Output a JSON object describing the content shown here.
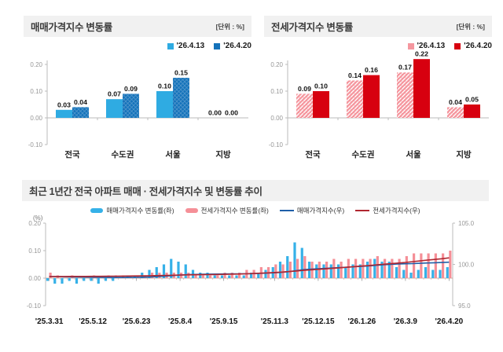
{
  "unit_label": "[단위 : %]",
  "panels": {
    "sales": {
      "title": "매매가격지수 변동률"
    },
    "jeonse": {
      "title": "전세가격지수 변동률"
    },
    "trend": {
      "title": "최근 1년간 전국 아파트 매매 · 전세가격지수 및 변동률 추이"
    }
  },
  "chart_data": [
    {
      "type": "bar",
      "title": "매매가격지수 변동률",
      "unit": "[단위 : %]",
      "categories": [
        "전국",
        "수도권",
        "서울",
        "지방"
      ],
      "series": [
        {
          "name": "'26.4.13",
          "color": "#2fabe2",
          "hatch": false,
          "values": [
            0.03,
            0.07,
            0.1,
            0.0
          ]
        },
        {
          "name": "'26.4.20",
          "color": "#1472ba",
          "hatch": true,
          "values": [
            0.04,
            0.09,
            0.15,
            0.0
          ]
        }
      ],
      "yticks": [
        "0.20",
        "0.10",
        "0.00",
        "-0.10"
      ],
      "ylim": [
        -0.1,
        0.2
      ],
      "grid": false,
      "legend_position": "top-right"
    },
    {
      "type": "bar",
      "title": "전세가격지수 변동률",
      "unit": "[단위 : %]",
      "categories": [
        "전국",
        "수도권",
        "서울",
        "지방"
      ],
      "series": [
        {
          "name": "'26.4.13",
          "color": "#f5979f",
          "hatch": true,
          "values": [
            0.09,
            0.14,
            0.17,
            0.04
          ]
        },
        {
          "name": "'26.4.20",
          "color": "#d7000f",
          "hatch": false,
          "values": [
            0.1,
            0.16,
            0.22,
            0.05
          ]
        }
      ],
      "yticks": [
        "0.20",
        "0.10",
        "0.00",
        "-0.10"
      ],
      "ylim": [
        -0.1,
        0.2
      ],
      "grid": false,
      "legend_position": "top-right"
    },
    {
      "type": "bar+line",
      "title": "최근 1년간 전국 아파트 매매 · 전세가격지수 및 변동률 추이",
      "left_axis": {
        "label": "(%)",
        "ticks": [
          "0.20",
          "0.10",
          "0.00",
          "-0.10"
        ],
        "range": [
          -0.1,
          0.2
        ]
      },
      "right_axis": {
        "ticks": [
          "105.0",
          "100.0",
          "95.0"
        ],
        "range": [
          95,
          105
        ]
      },
      "n_points": 56,
      "x_labels": [
        "'25.3.31",
        "'25.5.12",
        "'25.6.23",
        "'25.8.4",
        "'25.9.15",
        "'25.11.3",
        "'25.12.15",
        "'26.1.26",
        "'26.3.9",
        "'26.4.20"
      ],
      "x_label_indices": [
        0,
        6,
        12,
        18,
        24,
        31,
        37,
        43,
        49,
        55
      ],
      "bar_series": [
        {
          "name": "매매가격지수 변동률(좌)",
          "color": "#35b1e8",
          "values": [
            -0.01,
            -0.02,
            -0.02,
            -0.01,
            -0.02,
            -0.01,
            -0.01,
            -0.02,
            -0.01,
            -0.01,
            0.0,
            0.01,
            0.01,
            0.02,
            0.03,
            0.04,
            0.05,
            0.07,
            0.06,
            0.05,
            0.03,
            0.02,
            0.02,
            0.01,
            0.01,
            0.01,
            0.01,
            0.01,
            0.02,
            0.02,
            0.03,
            0.04,
            0.06,
            0.08,
            0.13,
            0.11,
            0.06,
            0.05,
            0.05,
            0.05,
            0.05,
            0.04,
            0.05,
            0.05,
            0.06,
            0.07,
            0.06,
            0.06,
            0.04,
            0.03,
            0.02,
            0.03,
            0.04,
            0.03,
            0.03,
            0.04
          ]
        },
        {
          "name": "전세가격지수 변동률(좌)",
          "color": "#f58f97",
          "values": [
            0.02,
            0.01,
            0.0,
            0.01,
            0.0,
            0.0,
            0.01,
            0.0,
            0.01,
            0.01,
            0.01,
            0.01,
            0.01,
            0.01,
            0.02,
            0.02,
            0.02,
            0.02,
            0.02,
            0.02,
            0.01,
            0.01,
            0.01,
            0.01,
            0.02,
            0.02,
            0.02,
            0.03,
            0.03,
            0.04,
            0.04,
            0.05,
            0.05,
            0.06,
            0.07,
            0.08,
            0.06,
            0.06,
            0.06,
            0.07,
            0.06,
            0.07,
            0.07,
            0.07,
            0.07,
            0.08,
            0.07,
            0.07,
            0.07,
            0.08,
            0.09,
            0.09,
            0.09,
            0.09,
            0.09,
            0.1
          ]
        }
      ],
      "line_series": [
        {
          "name": "매매가격지수(우)",
          "color": "#1f5fa8",
          "values": [
            98.54,
            98.52,
            98.5,
            98.49,
            98.47,
            98.46,
            98.45,
            98.43,
            98.42,
            98.41,
            98.41,
            98.42,
            98.43,
            98.45,
            98.48,
            98.52,
            98.57,
            98.64,
            98.7,
            98.75,
            98.78,
            98.8,
            98.82,
            98.83,
            98.84,
            98.85,
            98.86,
            98.87,
            98.89,
            98.91,
            98.94,
            98.98,
            99.04,
            99.12,
            99.25,
            99.36,
            99.42,
            99.47,
            99.52,
            99.57,
            99.62,
            99.66,
            99.71,
            99.76,
            99.82,
            99.89,
            99.95,
            100.01,
            100.05,
            100.08,
            100.1,
            100.13,
            100.17,
            100.2,
            100.23,
            100.27
          ]
        },
        {
          "name": "전세가격지수(우)",
          "color": "#b02730",
          "values": [
            98.52,
            98.53,
            98.53,
            98.54,
            98.54,
            98.54,
            98.55,
            98.55,
            98.56,
            98.57,
            98.58,
            98.59,
            98.6,
            98.61,
            98.63,
            98.65,
            98.67,
            98.69,
            98.71,
            98.73,
            98.74,
            98.75,
            98.76,
            98.77,
            98.79,
            98.81,
            98.83,
            98.86,
            98.89,
            98.93,
            98.97,
            99.02,
            99.07,
            99.13,
            99.2,
            99.28,
            99.34,
            99.4,
            99.46,
            99.53,
            99.59,
            99.66,
            99.73,
            99.8,
            99.87,
            99.95,
            100.02,
            100.09,
            100.16,
            100.24,
            100.33,
            100.42,
            100.51,
            100.6,
            100.69,
            100.79
          ]
        }
      ],
      "grid": false,
      "legend_position": "top-center"
    }
  ]
}
